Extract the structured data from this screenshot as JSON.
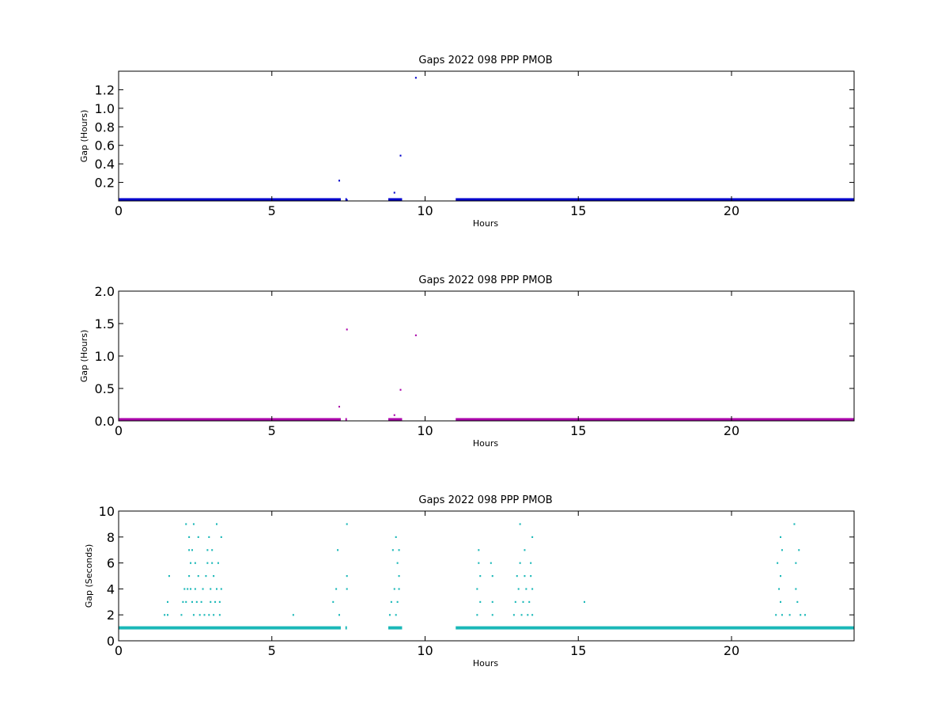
{
  "figure": {
    "background": "#ffffff"
  },
  "chart_data": [
    {
      "type": "scatter",
      "title": "Gaps 2022 098 PPP  PMOB",
      "xlabel": "Hours",
      "ylabel": "Gap (Hours)",
      "xlim": [
        0,
        24
      ],
      "ylim": [
        0,
        1.4
      ],
      "xticks": [
        0,
        5,
        10,
        15,
        20
      ],
      "xtick_labels": [
        "0",
        "5",
        "10",
        "15",
        "20"
      ],
      "yticks": [
        0.2,
        0.4,
        0.6,
        0.8,
        1.0,
        1.2
      ],
      "ytick_labels": [
        "0.2",
        "0.4",
        "0.6",
        "0.8",
        "1.0",
        "1.2"
      ],
      "color": "#0000cc",
      "grid": false,
      "baseline": {
        "y": 0.003,
        "segments": [
          [
            0,
            7.25
          ],
          [
            7.4,
            7.45
          ],
          [
            8.8,
            9.25
          ],
          [
            11.0,
            24.0
          ]
        ]
      },
      "points": [
        {
          "x": 2.45,
          "y": 0.01
        },
        {
          "x": 2.6,
          "y": 0.01
        },
        {
          "x": 7.2,
          "y": 0.22
        },
        {
          "x": 7.45,
          "y": 0.01
        },
        {
          "x": 8.85,
          "y": 0.02
        },
        {
          "x": 9.0,
          "y": 0.09
        },
        {
          "x": 9.05,
          "y": 0.01
        },
        {
          "x": 9.2,
          "y": 0.49
        },
        {
          "x": 9.7,
          "y": 1.33
        },
        {
          "x": 11.75,
          "y": 0.02
        }
      ]
    },
    {
      "type": "scatter",
      "title": "Gaps 2022 098 PPP  PMOB",
      "xlabel": "Hours",
      "ylabel": "Gap (Hours)",
      "xlim": [
        0,
        24
      ],
      "ylim": [
        0,
        2.0
      ],
      "xticks": [
        0,
        5,
        10,
        15,
        20
      ],
      "xtick_labels": [
        "0",
        "5",
        "10",
        "15",
        "20"
      ],
      "yticks": [
        0.0,
        0.5,
        1.0,
        1.5,
        2.0
      ],
      "ytick_labels": [
        "0.0",
        "0.5",
        "1.0",
        "1.5",
        "2.0"
      ],
      "color": "#aa00aa",
      "grid": false,
      "baseline": {
        "y": 0.003,
        "segments": [
          [
            0,
            7.25
          ],
          [
            7.4,
            7.45
          ],
          [
            8.8,
            9.25
          ],
          [
            11.0,
            24.0
          ]
        ]
      },
      "points": [
        {
          "x": 7.2,
          "y": 0.22
        },
        {
          "x": 7.45,
          "y": 1.41
        },
        {
          "x": 8.85,
          "y": 0.02
        },
        {
          "x": 9.0,
          "y": 0.09
        },
        {
          "x": 9.2,
          "y": 0.48
        },
        {
          "x": 9.7,
          "y": 1.32
        },
        {
          "x": 11.75,
          "y": 0.02
        }
      ]
    },
    {
      "type": "scatter",
      "title": "Gaps 2022 098 PPP  PMOB",
      "xlabel": "Hours",
      "ylabel": "Gap (Seconds)",
      "xlim": [
        0,
        24
      ],
      "ylim": [
        0,
        10
      ],
      "xticks": [
        0,
        5,
        10,
        15,
        20
      ],
      "xtick_labels": [
        "0",
        "5",
        "10",
        "15",
        "20"
      ],
      "yticks": [
        0,
        2,
        4,
        6,
        8,
        10
      ],
      "ytick_labels": [
        "0",
        "2",
        "4",
        "6",
        "8",
        "10"
      ],
      "color": "#1ab8b8",
      "grid": false,
      "baseline": {
        "y": 1,
        "segments": [
          [
            0,
            7.25
          ],
          [
            7.4,
            7.45
          ],
          [
            8.8,
            9.25
          ],
          [
            11.0,
            24.0
          ]
        ]
      },
      "points": [
        {
          "x": 1.5,
          "y": 2
        },
        {
          "x": 1.6,
          "y": 3
        },
        {
          "x": 1.65,
          "y": 5
        },
        {
          "x": 1.6,
          "y": 2
        },
        {
          "x": 2.05,
          "y": 2
        },
        {
          "x": 2.1,
          "y": 3
        },
        {
          "x": 2.15,
          "y": 4
        },
        {
          "x": 2.2,
          "y": 9
        },
        {
          "x": 2.2,
          "y": 3
        },
        {
          "x": 2.25,
          "y": 4
        },
        {
          "x": 2.3,
          "y": 8
        },
        {
          "x": 2.3,
          "y": 5
        },
        {
          "x": 2.3,
          "y": 7
        },
        {
          "x": 2.35,
          "y": 6
        },
        {
          "x": 2.35,
          "y": 4
        },
        {
          "x": 2.4,
          "y": 3
        },
        {
          "x": 2.4,
          "y": 7
        },
        {
          "x": 2.45,
          "y": 9
        },
        {
          "x": 2.45,
          "y": 2
        },
        {
          "x": 2.5,
          "y": 4
        },
        {
          "x": 2.5,
          "y": 6
        },
        {
          "x": 2.55,
          "y": 3
        },
        {
          "x": 2.6,
          "y": 8
        },
        {
          "x": 2.6,
          "y": 5
        },
        {
          "x": 2.65,
          "y": 2
        },
        {
          "x": 2.7,
          "y": 3
        },
        {
          "x": 2.75,
          "y": 4
        },
        {
          "x": 2.8,
          "y": 2
        },
        {
          "x": 2.85,
          "y": 5
        },
        {
          "x": 2.9,
          "y": 6
        },
        {
          "x": 2.9,
          "y": 7
        },
        {
          "x": 2.95,
          "y": 8
        },
        {
          "x": 2.95,
          "y": 2
        },
        {
          "x": 3.0,
          "y": 3
        },
        {
          "x": 3.0,
          "y": 4
        },
        {
          "x": 3.05,
          "y": 7
        },
        {
          "x": 3.05,
          "y": 6
        },
        {
          "x": 3.1,
          "y": 5
        },
        {
          "x": 3.1,
          "y": 2
        },
        {
          "x": 3.15,
          "y": 3
        },
        {
          "x": 3.2,
          "y": 9
        },
        {
          "x": 3.2,
          "y": 4
        },
        {
          "x": 3.25,
          "y": 6
        },
        {
          "x": 3.3,
          "y": 2
        },
        {
          "x": 3.3,
          "y": 3
        },
        {
          "x": 3.35,
          "y": 8
        },
        {
          "x": 3.35,
          "y": 4
        },
        {
          "x": 5.7,
          "y": 2
        },
        {
          "x": 7.0,
          "y": 3
        },
        {
          "x": 7.1,
          "y": 4
        },
        {
          "x": 7.15,
          "y": 7
        },
        {
          "x": 7.2,
          "y": 2
        },
        {
          "x": 7.45,
          "y": 9
        },
        {
          "x": 7.45,
          "y": 5
        },
        {
          "x": 7.45,
          "y": 4
        },
        {
          "x": 8.85,
          "y": 2
        },
        {
          "x": 8.9,
          "y": 3
        },
        {
          "x": 8.95,
          "y": 7
        },
        {
          "x": 9.0,
          "y": 4
        },
        {
          "x": 9.05,
          "y": 8
        },
        {
          "x": 9.05,
          "y": 2
        },
        {
          "x": 9.1,
          "y": 6
        },
        {
          "x": 9.1,
          "y": 3
        },
        {
          "x": 9.15,
          "y": 7
        },
        {
          "x": 9.15,
          "y": 5
        },
        {
          "x": 9.15,
          "y": 4
        },
        {
          "x": 11.7,
          "y": 2
        },
        {
          "x": 11.7,
          "y": 4
        },
        {
          "x": 11.75,
          "y": 7
        },
        {
          "x": 11.75,
          "y": 6
        },
        {
          "x": 11.8,
          "y": 5
        },
        {
          "x": 11.8,
          "y": 3
        },
        {
          "x": 12.15,
          "y": 6
        },
        {
          "x": 12.2,
          "y": 5
        },
        {
          "x": 12.2,
          "y": 3
        },
        {
          "x": 12.2,
          "y": 2
        },
        {
          "x": 12.9,
          "y": 2
        },
        {
          "x": 12.95,
          "y": 3
        },
        {
          "x": 13.0,
          "y": 5
        },
        {
          "x": 13.05,
          "y": 4
        },
        {
          "x": 13.1,
          "y": 6
        },
        {
          "x": 13.1,
          "y": 9
        },
        {
          "x": 13.15,
          "y": 2
        },
        {
          "x": 13.2,
          "y": 3
        },
        {
          "x": 13.25,
          "y": 5
        },
        {
          "x": 13.25,
          "y": 7
        },
        {
          "x": 13.3,
          "y": 4
        },
        {
          "x": 13.35,
          "y": 2
        },
        {
          "x": 13.4,
          "y": 3
        },
        {
          "x": 13.45,
          "y": 6
        },
        {
          "x": 13.45,
          "y": 5
        },
        {
          "x": 13.5,
          "y": 4
        },
        {
          "x": 13.5,
          "y": 8
        },
        {
          "x": 13.5,
          "y": 2
        },
        {
          "x": 15.2,
          "y": 3
        },
        {
          "x": 21.45,
          "y": 2
        },
        {
          "x": 21.5,
          "y": 6
        },
        {
          "x": 21.55,
          "y": 4
        },
        {
          "x": 21.6,
          "y": 8
        },
        {
          "x": 21.6,
          "y": 5
        },
        {
          "x": 21.6,
          "y": 3
        },
        {
          "x": 21.65,
          "y": 7
        },
        {
          "x": 21.65,
          "y": 2
        },
        {
          "x": 21.9,
          "y": 2
        },
        {
          "x": 22.05,
          "y": 9
        },
        {
          "x": 22.1,
          "y": 6
        },
        {
          "x": 22.1,
          "y": 4
        },
        {
          "x": 22.15,
          "y": 3
        },
        {
          "x": 22.2,
          "y": 7
        },
        {
          "x": 22.25,
          "y": 2
        },
        {
          "x": 22.4,
          "y": 2
        }
      ]
    }
  ]
}
